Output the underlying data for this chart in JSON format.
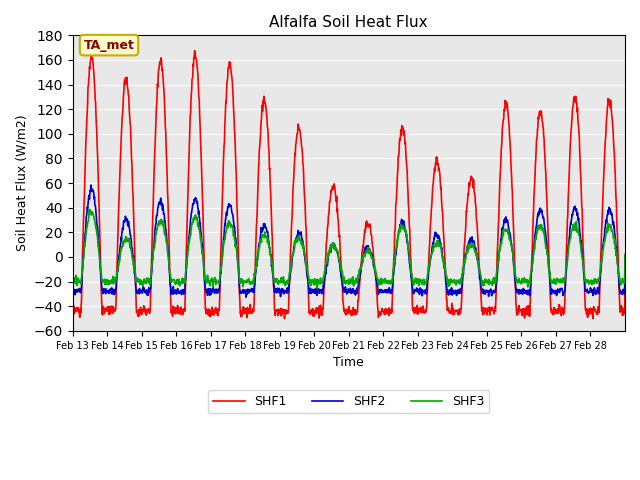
{
  "title": "Alfalfa Soil Heat Flux",
  "ylabel": "Soil Heat Flux (W/m2)",
  "xlabel": "Time",
  "ylim": [
    -60,
    180
  ],
  "yticks": [
    -60,
    -40,
    -20,
    0,
    20,
    40,
    60,
    80,
    100,
    120,
    140,
    160,
    180
  ],
  "xtick_labels": [
    "Feb 13",
    "Feb 14",
    "Feb 15",
    "Feb 16",
    "Feb 17",
    "Feb 18",
    "Feb 19",
    "Feb 20",
    "Feb 21",
    "Feb 22",
    "Feb 23",
    "Feb 24",
    "Feb 25",
    "Feb 26",
    "Feb 27",
    "Feb 28"
  ],
  "colors": {
    "SHF1": "#ff0000",
    "SHF2": "#0000cc",
    "SHF3": "#00aa00"
  },
  "annotation_text": "TA_met",
  "bg_color": "#e8e8e8",
  "line_width": 1.2,
  "peaks_shf1": [
    163,
    144,
    160,
    165,
    157,
    128,
    105,
    58,
    27,
    105,
    78,
    63,
    125,
    119,
    130,
    127
  ],
  "peaks_shf2": [
    55,
    30,
    45,
    47,
    42,
    25,
    20,
    10,
    8,
    28,
    18,
    15,
    30,
    38,
    40,
    38
  ],
  "peaks_shf3": [
    37,
    15,
    30,
    32,
    27,
    18,
    15,
    10,
    5,
    25,
    12,
    10,
    22,
    25,
    26,
    25
  ],
  "night_shf1": -44,
  "night_shf2": -28,
  "night_shf3": -20
}
